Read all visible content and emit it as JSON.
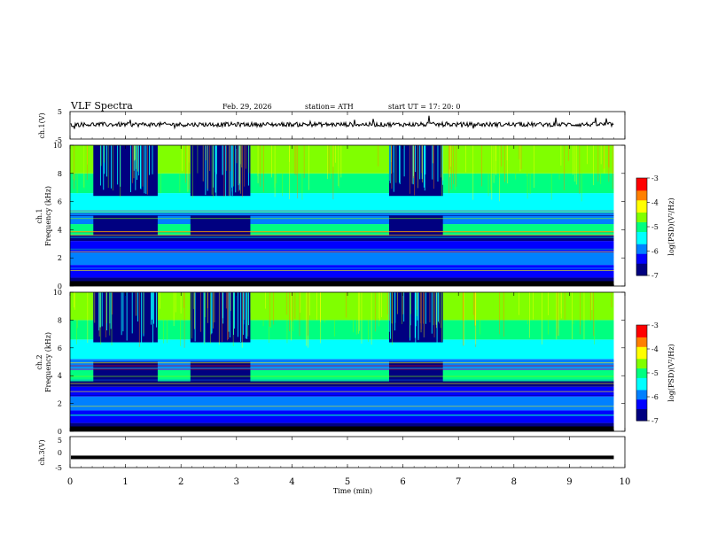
{
  "header": {
    "title": "VLF Spectra",
    "date": "Feb. 29, 2026",
    "station": "station= ATH",
    "start": "start UT =   17: 20: 0"
  },
  "chart_data": [
    {
      "type": "line",
      "name": "ch1-waveform",
      "ylabel": "ch.1(V)",
      "ylim": [
        -5,
        5
      ],
      "yticks": [
        "5",
        "-5"
      ],
      "xlim": [
        0,
        10
      ],
      "approx_level": 0.3
    },
    {
      "type": "heatmap",
      "name": "ch1-spectrogram",
      "ylabel": "ch.1\nFrequency (kHz)",
      "ylabel_line1": "ch.1",
      "ylabel_line2": "Frequency (kHz)",
      "ylim": [
        0,
        10
      ],
      "yticks": [
        "0",
        "2",
        "4",
        "6",
        "8",
        "10"
      ],
      "xlim": [
        0,
        10
      ],
      "data_extent_min": [
        0,
        9.8
      ],
      "quiet_intervals_min": [
        [
          0.42,
          1.58
        ],
        [
          2.17,
          3.25
        ],
        [
          5.75,
          6.72
        ]
      ],
      "colorbar": {
        "label": "log(PSD)(V²/Hz)",
        "range": [
          -7,
          -3
        ],
        "ticks": [
          "-3",
          "-4",
          "-5",
          "-6",
          "-7"
        ]
      }
    },
    {
      "type": "heatmap",
      "name": "ch2-spectrogram",
      "ylabel_line1": "ch.2",
      "ylabel_line2": "Frequency (kHz)",
      "ylim": [
        0,
        10
      ],
      "yticks": [
        "0",
        "2",
        "4",
        "6",
        "8",
        "10"
      ],
      "xlim": [
        0,
        10
      ],
      "data_extent_min": [
        0,
        9.8
      ],
      "quiet_intervals_min": [
        [
          0.42,
          1.58
        ],
        [
          2.17,
          3.25
        ],
        [
          5.75,
          6.72
        ]
      ],
      "colorbar": {
        "label": "log(PSD)(V²/Hz)",
        "range": [
          -7,
          -3
        ],
        "ticks": [
          "-3",
          "-4",
          "-5",
          "-6",
          "-7"
        ]
      }
    },
    {
      "type": "line",
      "name": "ch3-waveform",
      "ylabel": "ch.3(V)",
      "ylim": [
        -5,
        5
      ],
      "yticks": [
        "5",
        "0",
        "-5"
      ],
      "xlim": [
        0,
        10
      ],
      "approx_level": -1.7
    }
  ],
  "xaxis": {
    "label": "Time (min)",
    "ticks": [
      "0",
      "1",
      "2",
      "3",
      "4",
      "5",
      "6",
      "7",
      "8",
      "9",
      "10"
    ]
  },
  "colors": {
    "palette": [
      "#000080",
      "#0000ff",
      "#0080ff",
      "#00ffff",
      "#00ff80",
      "#80ff00",
      "#ffff00",
      "#ff8000",
      "#ff0000",
      "#ffffff"
    ]
  }
}
